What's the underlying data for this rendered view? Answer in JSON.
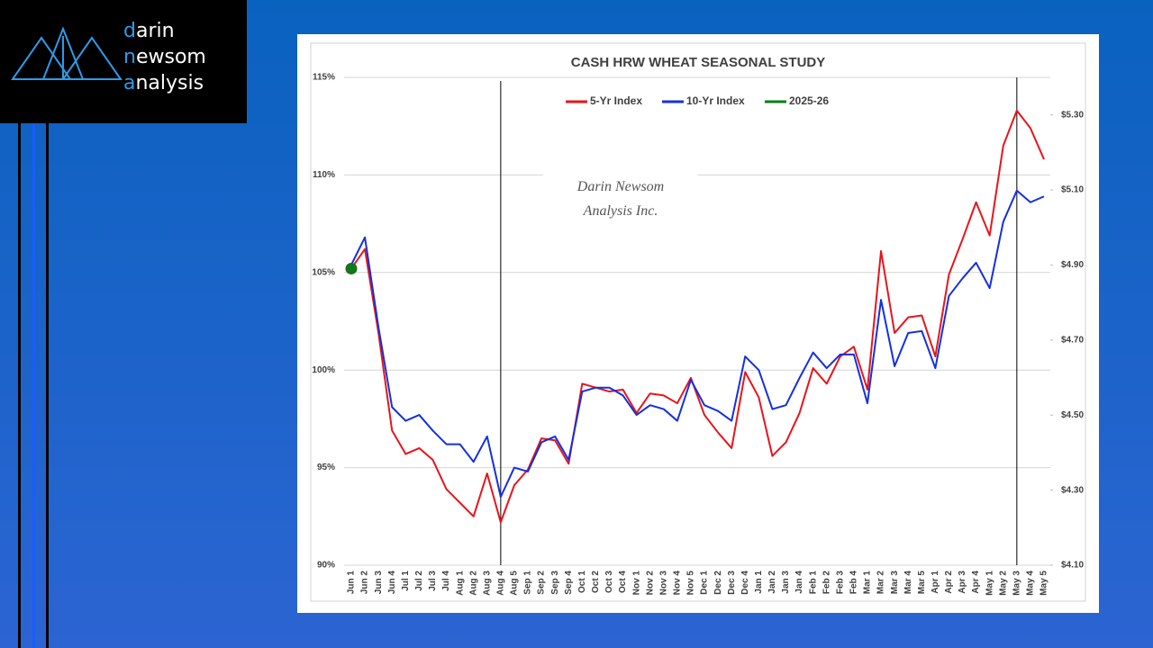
{
  "logo": [
    "darin",
    "newsom",
    "analysis"
  ],
  "watermark": [
    "Darin Newsom",
    "Analysis Inc."
  ],
  "chart_data": {
    "type": "line",
    "title": "CASH HRW WHEAT SEASONAL STUDY",
    "categories": [
      "Jun 1",
      "Jun 2",
      "Jun 3",
      "Jun 4",
      "Jul 1",
      "Jul 2",
      "Jul 3",
      "Jul 4",
      "Aug 1",
      "Aug 2",
      "Aug 3",
      "Aug 4",
      "Aug 5",
      "Sep 1",
      "Sep 2",
      "Sep 3",
      "Sep 4",
      "Oct 1",
      "Oct 2",
      "Oct 3",
      "Oct 4",
      "Nov 1",
      "Nov 2",
      "Nov 3",
      "Nov 4",
      "Nov 5",
      "Dec 1",
      "Dec 2",
      "Dec 3",
      "Dec 4",
      "Jan 1",
      "Jan 2",
      "Jan 3",
      "Jan 4",
      "Feb 1",
      "Feb 2",
      "Feb 3",
      "Feb 4",
      "Mar 1",
      "Mar 2",
      "Mar 3",
      "Mar 4",
      "Mar 5",
      "Apr 1",
      "Apr 2",
      "Apr 3",
      "Apr 4",
      "May 1",
      "May 2",
      "May 3",
      "May 4",
      "May 5"
    ],
    "series": [
      {
        "name": "5-Yr Index",
        "color": "#e8141b",
        "values": [
          105.2,
          106.2,
          101.9,
          96.9,
          95.7,
          96.0,
          95.4,
          93.9,
          93.2,
          92.5,
          94.7,
          92.2,
          94.1,
          94.9,
          96.5,
          96.4,
          95.2,
          99.3,
          99.1,
          98.9,
          99.0,
          97.8,
          98.8,
          98.7,
          98.3,
          99.6,
          97.7,
          96.8,
          96.0,
          99.9,
          98.6,
          95.6,
          96.3,
          97.8,
          100.1,
          99.3,
          100.7,
          101.2,
          99.0,
          106.1,
          101.9,
          102.7,
          102.8,
          100.7,
          104.9,
          106.7,
          108.6,
          106.9,
          111.5,
          113.3,
          112.4,
          110.8
        ]
      },
      {
        "name": "10-Yr Index",
        "color": "#1430e0",
        "values": [
          105.4,
          106.8,
          102.2,
          98.1,
          97.4,
          97.7,
          96.9,
          96.2,
          96.2,
          95.3,
          96.6,
          93.5,
          95.0,
          94.8,
          96.3,
          96.6,
          95.4,
          98.9,
          99.1,
          99.1,
          98.7,
          97.7,
          98.2,
          98.0,
          97.4,
          99.5,
          98.2,
          97.9,
          97.4,
          100.7,
          100.0,
          98.0,
          98.2,
          99.6,
          100.9,
          100.1,
          100.8,
          100.8,
          98.3,
          103.6,
          100.2,
          101.9,
          102.0,
          100.1,
          103.8,
          104.7,
          105.5,
          104.2,
          107.6,
          109.2,
          108.6,
          108.9
        ]
      },
      {
        "name": "2025-26",
        "color": "#0a7d16",
        "values": [
          105.2,
          null,
          null,
          null,
          null,
          null,
          null,
          null,
          null,
          null,
          null,
          null,
          null,
          null,
          null,
          null,
          null,
          null,
          null,
          null,
          null,
          null,
          null,
          null,
          null,
          null,
          null,
          null,
          null,
          null,
          null,
          null,
          null,
          null,
          null,
          null,
          null,
          null,
          null,
          null,
          null,
          null,
          null,
          null,
          null,
          null,
          null,
          null,
          null,
          null,
          null,
          null
        ]
      }
    ],
    "ylim": [
      90,
      115
    ],
    "yticks": [
      {
        "value": 90,
        "label": "90%"
      },
      {
        "value": 95,
        "label": "95%"
      },
      {
        "value": 100,
        "label": "100%"
      },
      {
        "value": 105,
        "label": "105%"
      },
      {
        "value": 110,
        "label": "110%"
      },
      {
        "value": 115,
        "label": "115%"
      }
    ],
    "y2lim": [
      4.1,
      5.4
    ],
    "y2ticks": [
      {
        "value": 4.1,
        "label": "$4.10"
      },
      {
        "value": 4.3,
        "label": "$4.30"
      },
      {
        "value": 4.5,
        "label": "$4.50"
      },
      {
        "value": 4.7,
        "label": "$4.70"
      },
      {
        "value": 4.9,
        "label": "$4.90"
      },
      {
        "value": 5.1,
        "label": "$5.10"
      },
      {
        "value": 5.3,
        "label": "$5.30"
      }
    ],
    "grid": true,
    "legend": "top"
  }
}
